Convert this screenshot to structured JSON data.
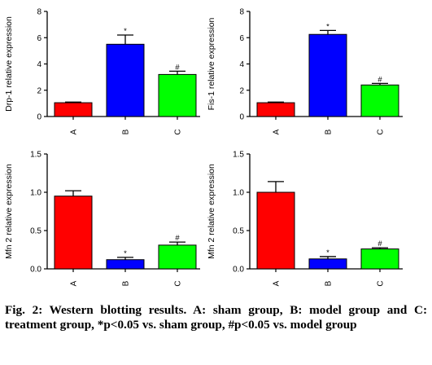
{
  "chart_data": [
    {
      "type": "bar",
      "ylabel": "Drp-1 relative expression",
      "categories": [
        "A",
        "B",
        "C"
      ],
      "values": [
        1.05,
        5.5,
        3.2
      ],
      "errors": [
        0.05,
        0.7,
        0.25
      ],
      "annotations": [
        "",
        "*",
        "#"
      ],
      "colors": [
        "#ff0000",
        "#0000ff",
        "#00ff00"
      ],
      "ylim": [
        0,
        8
      ],
      "yticks": [
        "0",
        "2",
        "4",
        "6",
        "8"
      ]
    },
    {
      "type": "bar",
      "ylabel": "Fis-1 relative expression",
      "categories": [
        "A",
        "B",
        "C"
      ],
      "values": [
        1.05,
        6.25,
        2.4
      ],
      "errors": [
        0.05,
        0.3,
        0.12
      ],
      "annotations": [
        "",
        "*",
        "#"
      ],
      "colors": [
        "#ff0000",
        "#0000ff",
        "#00ff00"
      ],
      "ylim": [
        0,
        8
      ],
      "yticks": [
        "0",
        "2",
        "4",
        "6",
        "8"
      ]
    },
    {
      "type": "bar",
      "ylabel": "Mfn 2 relative expression",
      "categories": [
        "A",
        "B",
        "C"
      ],
      "values": [
        0.95,
        0.12,
        0.31
      ],
      "errors": [
        0.07,
        0.03,
        0.04
      ],
      "annotations": [
        "",
        "*",
        "#"
      ],
      "colors": [
        "#ff0000",
        "#0000ff",
        "#00ff00"
      ],
      "ylim": [
        0,
        1.5
      ],
      "yticks": [
        "0.0",
        "0.5",
        "1.0",
        "1.5"
      ]
    },
    {
      "type": "bar",
      "ylabel": "Mfn 2 relative expression",
      "categories": [
        "A",
        "B",
        "C"
      ],
      "values": [
        1.0,
        0.13,
        0.26
      ],
      "errors": [
        0.14,
        0.03,
        0.015
      ],
      "annotations": [
        "",
        "*",
        "#"
      ],
      "colors": [
        "#ff0000",
        "#0000ff",
        "#00ff00"
      ],
      "ylim": [
        0,
        1.5
      ],
      "yticks": [
        "0.0",
        "0.5",
        "1.0",
        "1.5"
      ]
    }
  ],
  "caption": "Fig. 2: Western blotting results. A: sham group, B: model group and C: treatment group, *p<0.05 vs. sham group, #p<0.05 vs. model group"
}
